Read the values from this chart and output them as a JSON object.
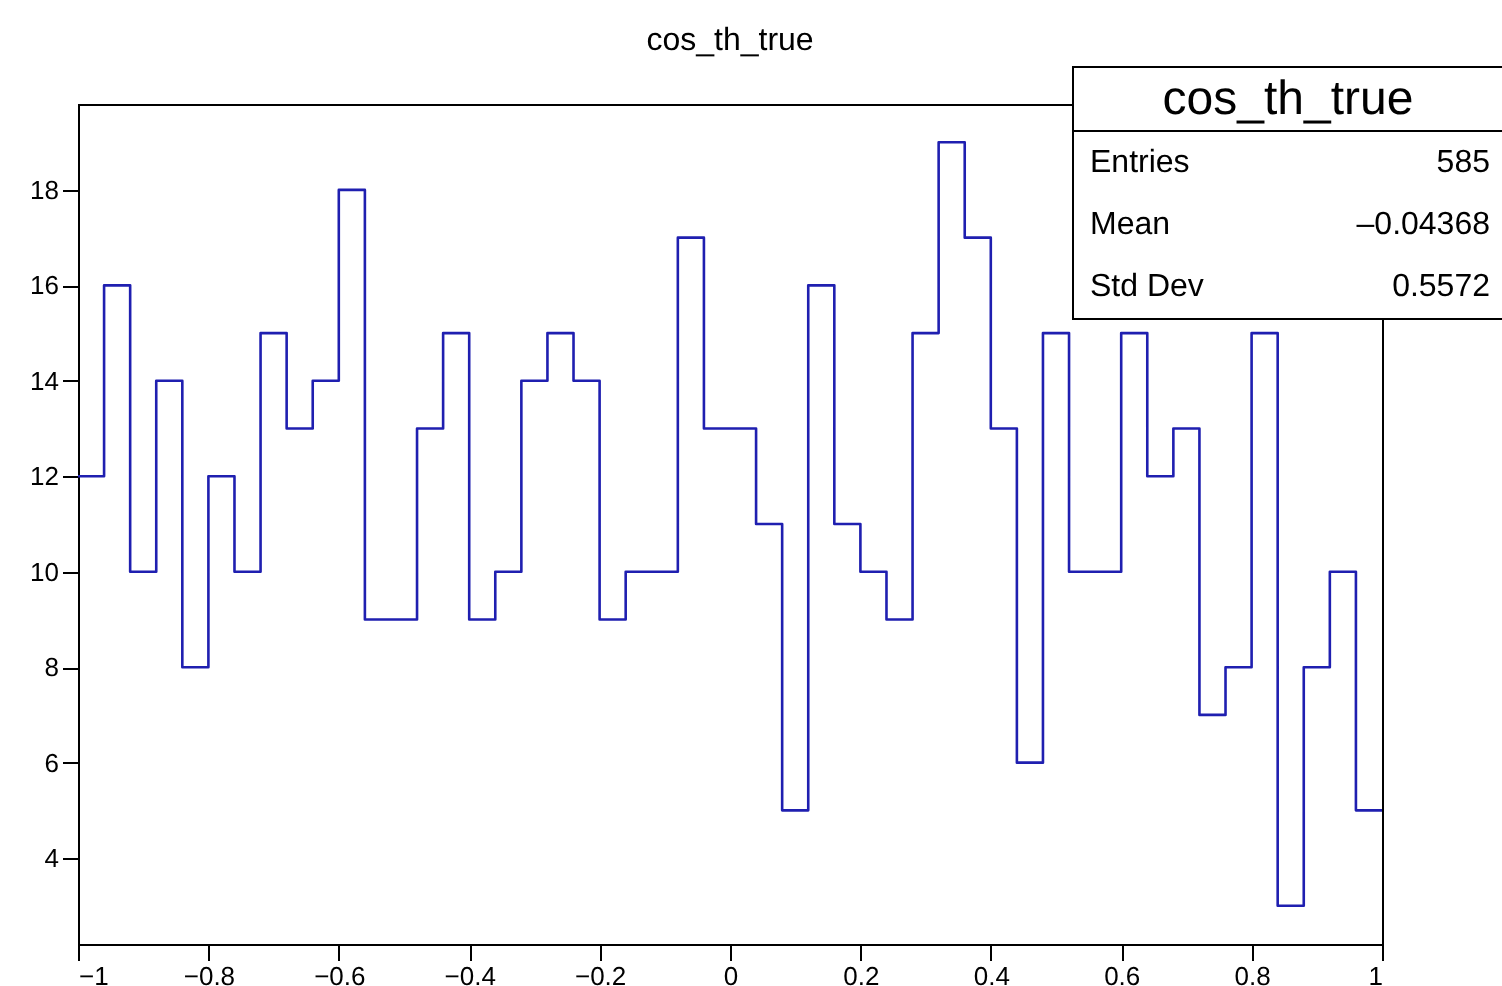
{
  "chart_data": {
    "type": "histogram",
    "title": "cos_th_true",
    "bins": [
      -1,
      -0.96,
      -0.92,
      -0.88,
      -0.84,
      -0.8,
      -0.76,
      -0.72,
      -0.68,
      -0.64,
      -0.6,
      -0.56,
      -0.52,
      -0.48,
      -0.44,
      -0.4,
      -0.36,
      -0.32,
      -0.28,
      -0.24,
      -0.2,
      -0.16,
      -0.12,
      -0.08,
      -0.04,
      0,
      0.04,
      0.08,
      0.12,
      0.16,
      0.2,
      0.24,
      0.28,
      0.32,
      0.36,
      0.4,
      0.44,
      0.48,
      0.52,
      0.56,
      0.6,
      0.64,
      0.68,
      0.72,
      0.76,
      0.8,
      0.84,
      0.88,
      0.92,
      0.96,
      1
    ],
    "values": [
      12,
      16,
      10,
      14,
      8,
      12,
      10,
      15,
      13,
      14,
      18,
      9,
      9,
      13,
      15,
      9,
      10,
      14,
      15,
      14,
      9,
      10,
      10,
      17,
      13,
      13,
      11,
      5,
      16,
      11,
      10,
      9,
      15,
      19,
      17,
      13,
      6,
      15,
      10,
      10,
      15,
      12,
      13,
      7,
      8,
      15,
      3,
      8,
      10,
      5
    ],
    "color": "#1f1fb0",
    "xlim": [
      -1,
      1
    ],
    "xticks": [
      -1,
      -0.8,
      -0.6,
      -0.4,
      -0.2,
      0,
      0.2,
      0.4,
      0.6,
      0.8,
      1
    ],
    "ylim": [
      2.2,
      19.8
    ],
    "yticks": [
      4,
      6,
      8,
      10,
      12,
      14,
      16,
      18
    ],
    "grid": false,
    "annotations": [
      "cos_th_true",
      "Entries",
      "585",
      "Mean",
      "–0.04368",
      "Std Dev",
      "0.5572"
    ]
  }
}
